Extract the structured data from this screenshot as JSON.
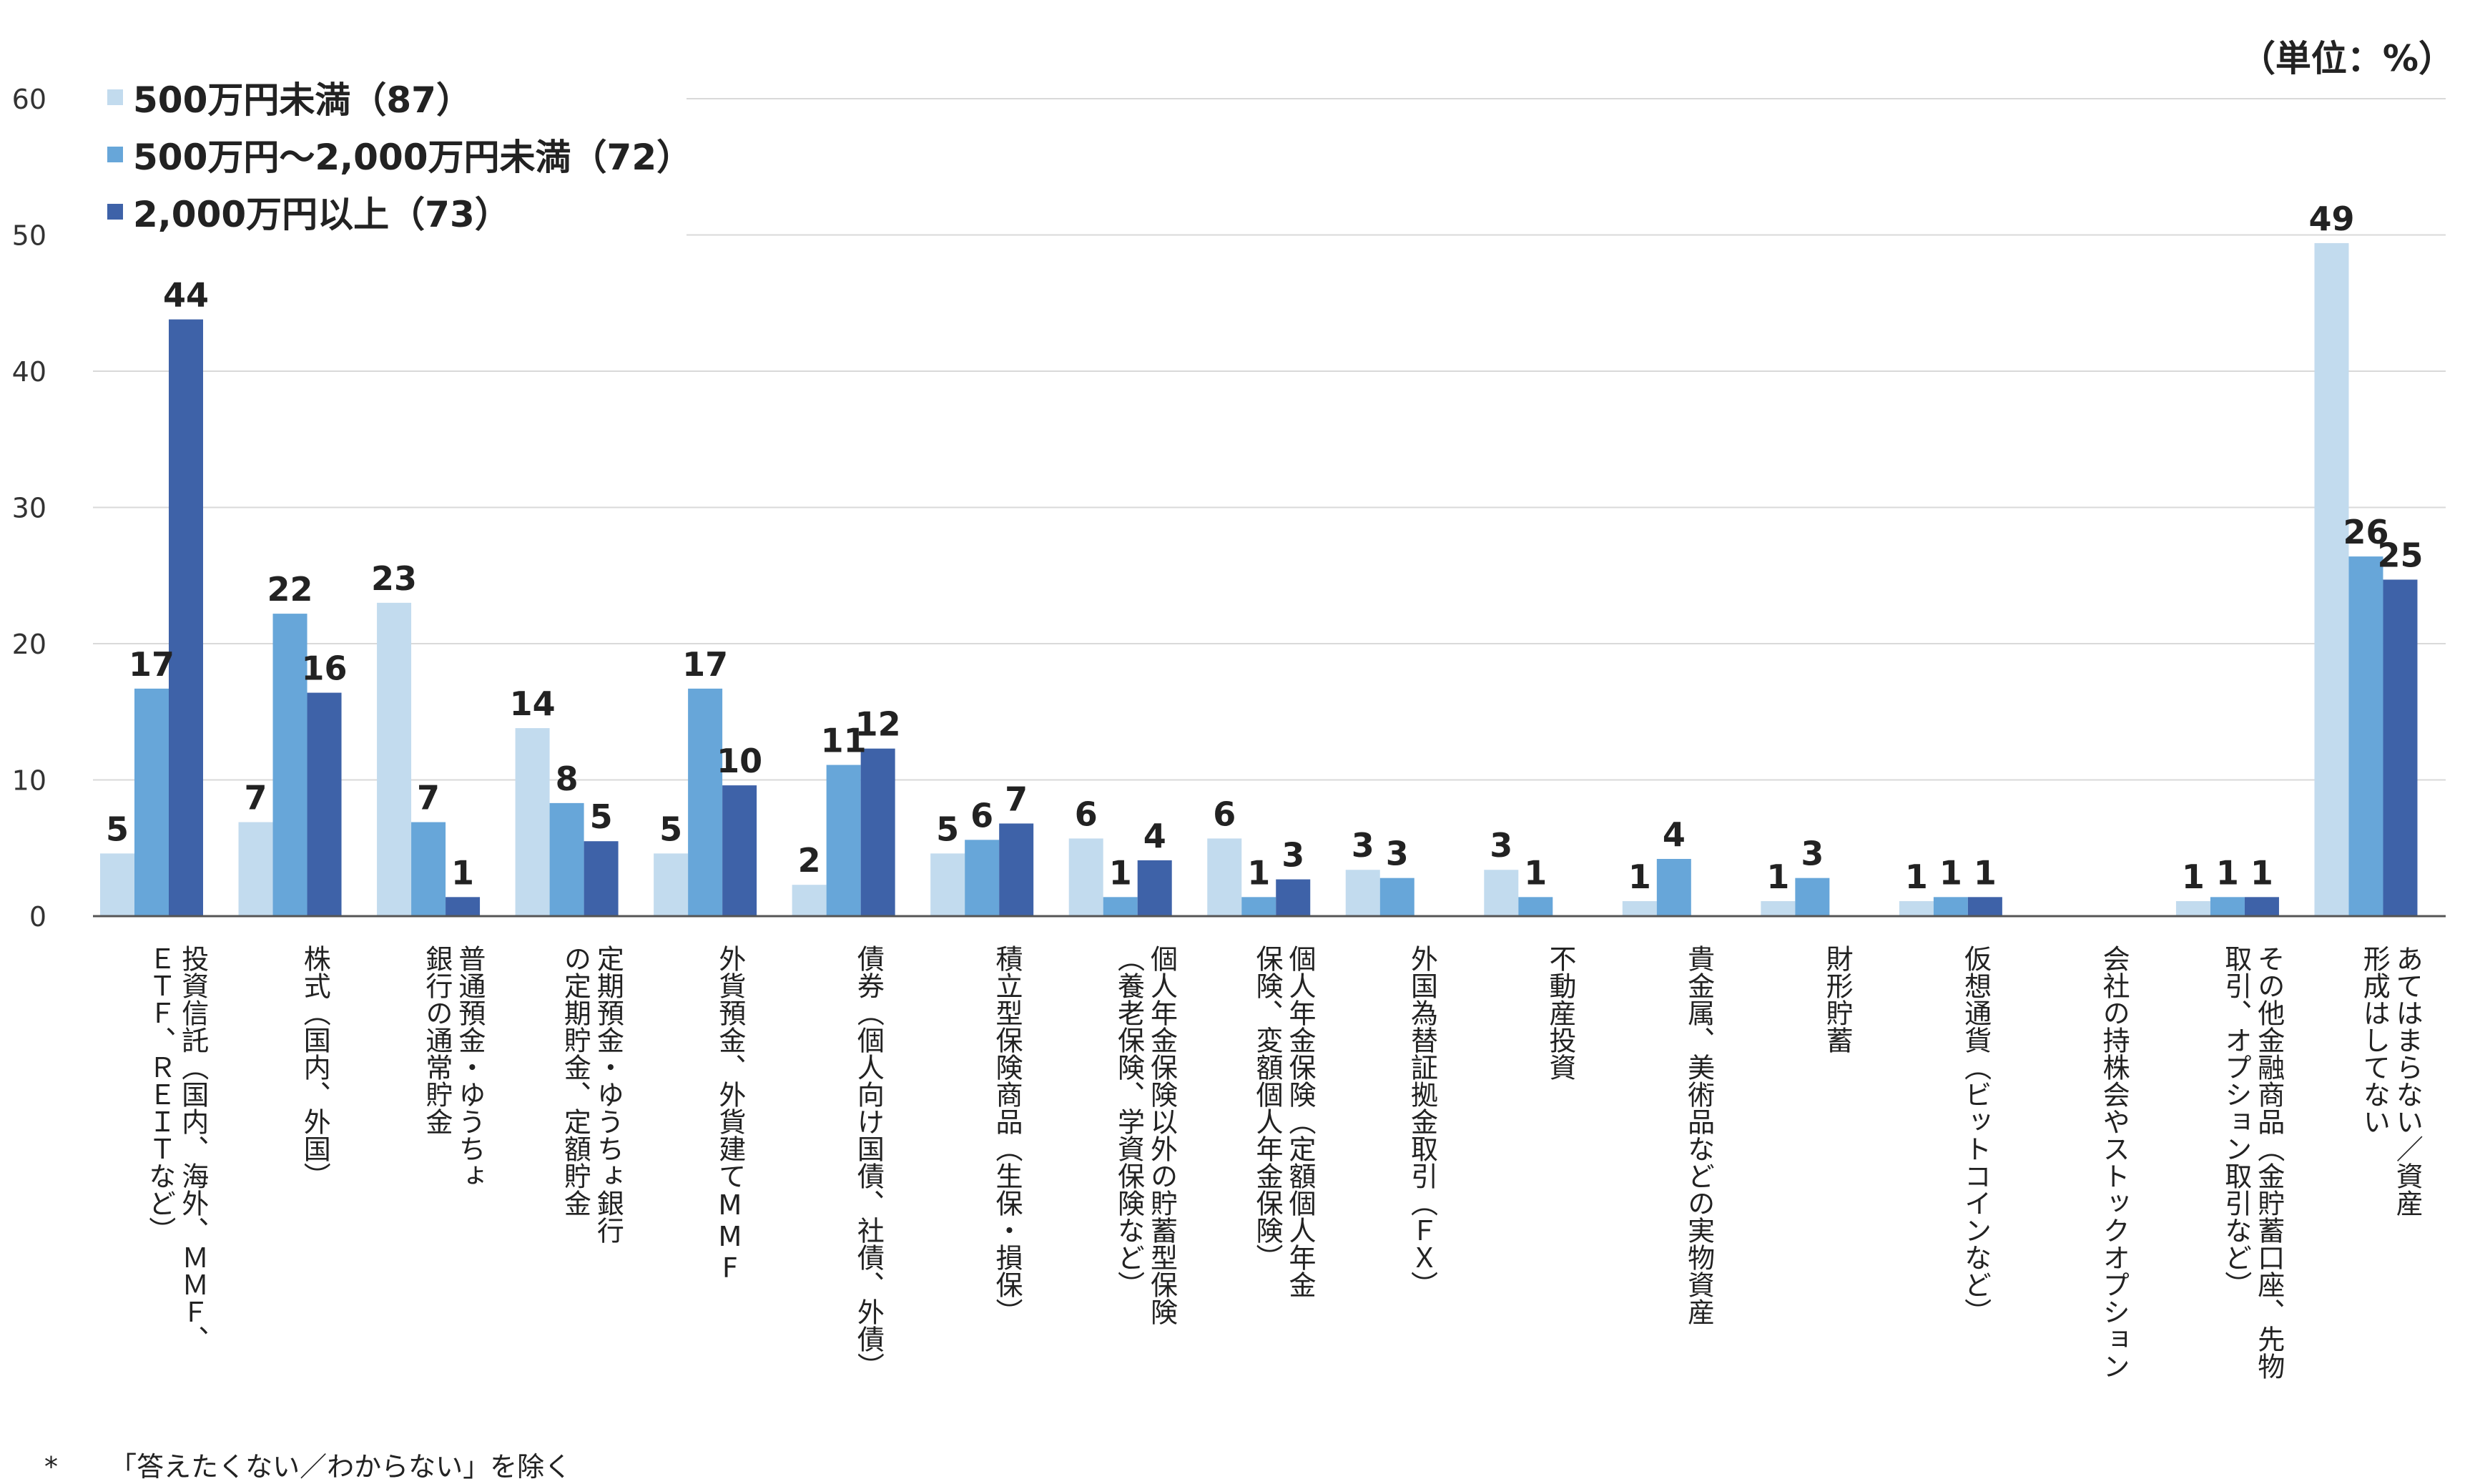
{
  "unit_label": "（単位：%）",
  "footnote": {
    "marker": "*",
    "text": "「答えたくない／わからない」を除く"
  },
  "colors": {
    "series1": "#c2dbee",
    "series2": "#67a6d9",
    "series3": "#3e62a8",
    "grid": "#d9d9d9",
    "axis": "#555555"
  },
  "chart_data": {
    "type": "bar",
    "title": "",
    "xlabel": "",
    "ylabel": "",
    "ylim": [
      0,
      60
    ],
    "yticks": [
      0,
      10,
      20,
      30,
      40,
      50,
      60
    ],
    "legend_position": "top-left",
    "categories": [
      [
        "投資信託（国内、海外、ＭＭＦ、",
        "ＥＴＦ、ＲＥＩＴなど）"
      ],
      [
        "株式（国内、外国）"
      ],
      [
        "普通預金・ゆうちょ",
        "銀行の通常貯金"
      ],
      [
        "定期預金・ゆうちょ銀行",
        "の定期貯金、定額貯金"
      ],
      [
        "外貨預金、外貨建てMMF"
      ],
      [
        "債券（個人向け国債、社債、外債）"
      ],
      [
        "積立型保険商品（生保・損保）"
      ],
      [
        "個人年金保険以外の貯蓄型保険",
        "（養老保険、学資保険など）"
      ],
      [
        "個人年金保険（定額個人年金",
        "保険、変額個人年金保険）"
      ],
      [
        "外国為替証拠金取引（ＦＸ）"
      ],
      [
        "不動産投資"
      ],
      [
        "貴金属、美術品などの実物資産"
      ],
      [
        "財形貯蓄"
      ],
      [
        "仮想通貨（ビットコインなど）"
      ],
      [
        "会社の持株会やストックオプション"
      ],
      [
        "その他金融商品（金貯蓄口座、先物",
        "取引、オプション取引など）"
      ],
      [
        "あてはまらない／資産",
        "形成はしてない"
      ]
    ],
    "series": [
      {
        "name": "500万円未満（87）",
        "values": [
          4.6,
          6.9,
          23.0,
          13.8,
          4.6,
          2.3,
          4.6,
          5.7,
          5.7,
          3.4,
          3.4,
          1.1,
          1.1,
          1.1,
          null,
          1.1,
          49.4
        ],
        "labels": [
          "5",
          "7",
          "23",
          "14",
          "5",
          "2",
          "5",
          "6",
          "6",
          "3",
          "3",
          "1",
          "1",
          "1",
          "",
          "1",
          "49"
        ]
      },
      {
        "name": "500万円〜2,000万円未満（72）",
        "values": [
          16.7,
          22.2,
          6.9,
          8.3,
          16.7,
          11.1,
          5.6,
          1.4,
          1.4,
          2.8,
          1.4,
          4.2,
          2.8,
          1.4,
          null,
          1.4,
          26.4
        ],
        "labels": [
          "17",
          "22",
          "7",
          "8",
          "17",
          "11",
          "6",
          "1",
          "1",
          "3",
          "1",
          "4",
          "3",
          "1",
          "",
          "1",
          "26"
        ]
      },
      {
        "name": "2,000万円以上（73）",
        "values": [
          43.8,
          16.4,
          1.4,
          5.5,
          9.6,
          12.3,
          6.8,
          4.1,
          2.7,
          null,
          null,
          null,
          null,
          1.4,
          null,
          1.4,
          24.7
        ],
        "labels": [
          "44",
          "16",
          "1",
          "5",
          "10",
          "12",
          "7",
          "4",
          "3",
          "",
          "",
          "",
          "",
          "1",
          "",
          "1",
          "25"
        ]
      }
    ]
  }
}
